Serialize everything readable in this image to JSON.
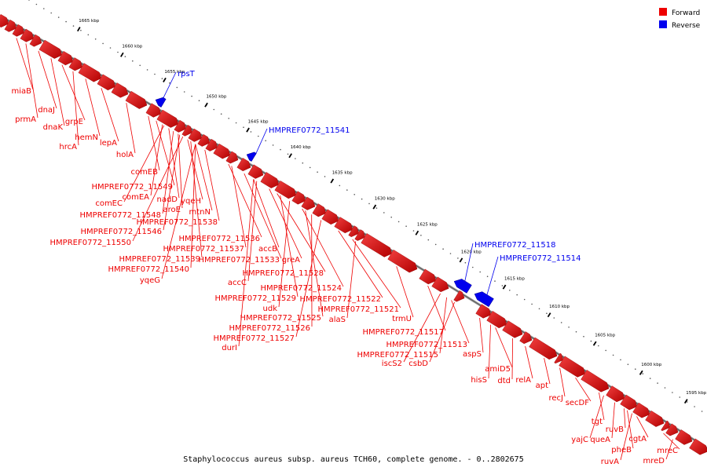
{
  "legend": {
    "forward_label": "Forward",
    "reverse_label": "Reverse",
    "forward_color": "#ee0000",
    "reverse_color": "#0000ee"
  },
  "footer_text": "Staphylococcus aureus subsp. aureus TCH60, complete genome. - 0..2802675",
  "axis_ticks": [
    "1665 kbp",
    "1660 kbp",
    "1655 kbp",
    "1650 kbp",
    "1645 kbp",
    "1640 kbp",
    "1635 kbp",
    "1630 kbp",
    "1625 kbp",
    "1620 kbp",
    "1615 kbp",
    "1610 kbp",
    "1605 kbp",
    "1600 kbp",
    "1595 kbp"
  ],
  "genes": [
    {
      "name": "miaB",
      "strand": "forward"
    },
    {
      "name": "prmA",
      "strand": "forward"
    },
    {
      "name": "dnaJ",
      "strand": "forward"
    },
    {
      "name": "dnaK",
      "strand": "forward"
    },
    {
      "name": "grpE",
      "strand": "forward"
    },
    {
      "name": "hrcA",
      "strand": "forward"
    },
    {
      "name": "hemN",
      "strand": "forward"
    },
    {
      "name": "lepA",
      "strand": "forward"
    },
    {
      "name": "rpsT",
      "strand": "reverse"
    },
    {
      "name": "holA",
      "strand": "forward"
    },
    {
      "name": "comEB",
      "strand": "forward"
    },
    {
      "name": "HMPREF0772_11549",
      "strand": "forward"
    },
    {
      "name": "comEA",
      "strand": "forward"
    },
    {
      "name": "nadD",
      "strand": "forward"
    },
    {
      "name": "comEC",
      "strand": "forward"
    },
    {
      "name": "aroE",
      "strand": "forward"
    },
    {
      "name": "yqeH",
      "strand": "forward"
    },
    {
      "name": "HMPREF0772_11548",
      "strand": "forward"
    },
    {
      "name": "mtnN",
      "strand": "forward"
    },
    {
      "name": "HMPREF0772_11538",
      "strand": "forward"
    },
    {
      "name": "HMPREF0772_11541",
      "strand": "reverse"
    },
    {
      "name": "HMPREF0772_11546",
      "strand": "forward"
    },
    {
      "name": "HMPREF0772_11550",
      "strand": "forward"
    },
    {
      "name": "HMPREF0772_11536",
      "strand": "forward"
    },
    {
      "name": "HMPREF0772_11537",
      "strand": "forward"
    },
    {
      "name": "HMPREF0772_11539",
      "strand": "forward"
    },
    {
      "name": "HMPREF0772_11533",
      "strand": "forward"
    },
    {
      "name": "accB",
      "strand": "forward"
    },
    {
      "name": "greA",
      "strand": "forward"
    },
    {
      "name": "HMPREF0772_11540",
      "strand": "forward"
    },
    {
      "name": "HMPREF0772_11528",
      "strand": "forward"
    },
    {
      "name": "yqeG",
      "strand": "forward"
    },
    {
      "name": "accC",
      "strand": "forward"
    },
    {
      "name": "HMPREF0772_11524",
      "strand": "forward"
    },
    {
      "name": "HMPREF0772_11529",
      "strand": "forward"
    },
    {
      "name": "HMPREF0772_11522",
      "strand": "forward"
    },
    {
      "name": "udk",
      "strand": "forward"
    },
    {
      "name": "HMPREF0772_11521",
      "strand": "forward"
    },
    {
      "name": "HMPREF0772_11525",
      "strand": "forward"
    },
    {
      "name": "alaS",
      "strand": "forward"
    },
    {
      "name": "HMPREF0772_11526",
      "strand": "forward"
    },
    {
      "name": "HMPREF0772_11527",
      "strand": "forward"
    },
    {
      "name": "trmU",
      "strand": "forward"
    },
    {
      "name": "durI",
      "strand": "forward"
    },
    {
      "name": "HMPREF0772_11517",
      "strand": "forward"
    },
    {
      "name": "HMPREF0772_11518",
      "strand": "reverse"
    },
    {
      "name": "HMPREF0772_11514",
      "strand": "reverse"
    },
    {
      "name": "HMPREF0772_11513",
      "strand": "forward"
    },
    {
      "name": "HMPREF0772_11515",
      "strand": "forward"
    },
    {
      "name": "iscS2",
      "strand": "forward"
    },
    {
      "name": "csbD",
      "strand": "forward"
    },
    {
      "name": "aspS",
      "strand": "forward"
    },
    {
      "name": "amiD5",
      "strand": "forward"
    },
    {
      "name": "hisS",
      "strand": "forward"
    },
    {
      "name": "dtd",
      "strand": "forward"
    },
    {
      "name": "relA",
      "strand": "forward"
    },
    {
      "name": "apt",
      "strand": "forward"
    },
    {
      "name": "recJ",
      "strand": "forward"
    },
    {
      "name": "secDF",
      "strand": "forward"
    },
    {
      "name": "tgt",
      "strand": "forward"
    },
    {
      "name": "yajC",
      "strand": "forward"
    },
    {
      "name": "queA",
      "strand": "forward"
    },
    {
      "name": "ruvB",
      "strand": "forward"
    },
    {
      "name": "cgtA",
      "strand": "forward"
    },
    {
      "name": "pheB",
      "strand": "forward"
    },
    {
      "name": "mreC",
      "strand": "forward"
    },
    {
      "name": "ruvA",
      "strand": "forward"
    },
    {
      "name": "mreD",
      "strand": "forward"
    }
  ]
}
